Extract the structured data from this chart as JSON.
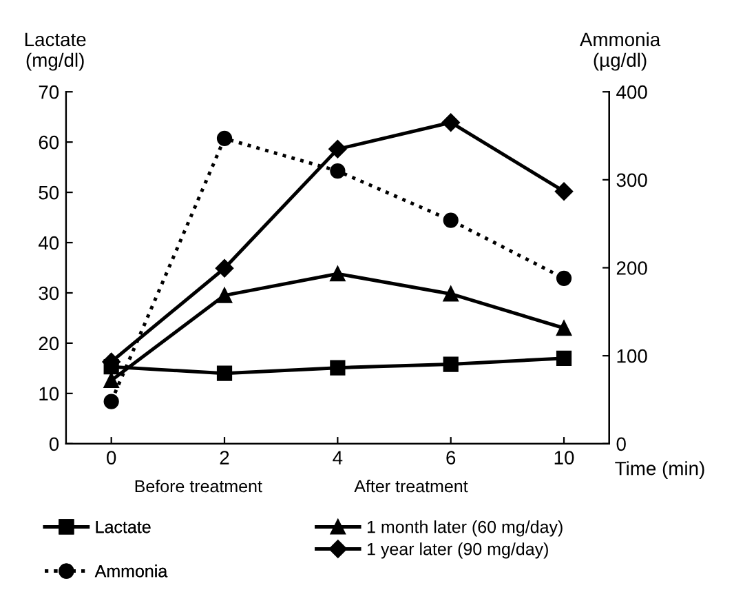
{
  "chart_data": {
    "type": "line",
    "categories": [
      "0",
      "2",
      "4",
      "6",
      "10"
    ],
    "xlabel": "Time (min)",
    "ylabel": "Lactate\n(mg/dl)",
    "y2label": "Ammonia\n(µg/dl)",
    "ylim": [
      0,
      70
    ],
    "yticks": [
      0,
      10,
      20,
      30,
      40,
      50,
      60,
      70
    ],
    "y2lim": [
      0,
      400
    ],
    "y2ticks": [
      0,
      100,
      200,
      300,
      400
    ],
    "grid": false,
    "legend": "bottom",
    "line_style": "solid",
    "annotations": [
      "Before treatment",
      "After treatment"
    ],
    "series": [
      {
        "name": "Lactate",
        "color": "#000000",
        "marker": "square",
        "values": [
          15.3,
          14,
          15.1,
          15.8,
          17
        ]
      },
      {
        "name": "1 month later (60 mg/day)",
        "color": "#000000",
        "marker": "triangle",
        "values": [
          12.6,
          29.5,
          33.8,
          29.8,
          23
        ]
      },
      {
        "name": "1 year later (90 mg/day)",
        "color": "#000000",
        "marker": "diamond",
        "values": [
          16.3,
          34.9,
          58.6,
          63.9,
          50.2
        ]
      },
      {
        "name": "Ammonia",
        "color": "#000000",
        "marker": "circle",
        "line_style": "dotted",
        "axis": "y2",
        "values": [
          48,
          347,
          310,
          254,
          188
        ]
      }
    ]
  }
}
